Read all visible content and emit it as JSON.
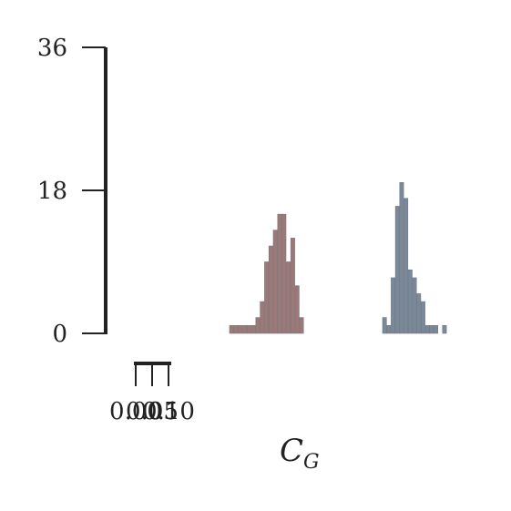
{
  "chart_data": {
    "type": "bar",
    "title": "",
    "xlabel": "C",
    "xlabel_subscript": "G",
    "ylabel": "",
    "y_ticks": [
      "0",
      "18",
      "36"
    ],
    "x_ticks": [
      "0.00",
      "0.05",
      "0.10"
    ],
    "x_tick_values": [
      0.0,
      0.05,
      0.1
    ],
    "ylim": [
      0,
      36
    ],
    "grid": false,
    "colors": {
      "series_a": "#5a1e1e",
      "series_b": "#1e3a5c",
      "axis": "#222222"
    },
    "series": [
      {
        "color_key": "series_a",
        "bins": [
          {
            "bin": 0,
            "count": 1
          },
          {
            "bin": 1,
            "count": 1
          },
          {
            "bin": 2,
            "count": 1
          },
          {
            "bin": 3,
            "count": 1
          },
          {
            "bin": 4,
            "count": 1
          },
          {
            "bin": 5,
            "count": 1
          },
          {
            "bin": 6,
            "count": 2
          },
          {
            "bin": 7,
            "count": 4
          },
          {
            "bin": 8,
            "count": 9
          },
          {
            "bin": 9,
            "count": 11
          },
          {
            "bin": 10,
            "count": 13
          },
          {
            "bin": 11,
            "count": 15
          },
          {
            "bin": 12,
            "count": 15
          },
          {
            "bin": 13,
            "count": 9
          },
          {
            "bin": 14,
            "count": 12
          },
          {
            "bin": 15,
            "count": 6
          },
          {
            "bin": 16,
            "count": 2
          }
        ]
      },
      {
        "color_key": "series_b",
        "bins": [
          {
            "bin": 0,
            "count": 2
          },
          {
            "bin": 1,
            "count": 1
          },
          {
            "bin": 2,
            "count": 7
          },
          {
            "bin": 3,
            "count": 16
          },
          {
            "bin": 4,
            "count": 19
          },
          {
            "bin": 5,
            "count": 17
          },
          {
            "bin": 6,
            "count": 8
          },
          {
            "bin": 7,
            "count": 7
          },
          {
            "bin": 8,
            "count": 5
          },
          {
            "bin": 9,
            "count": 4
          },
          {
            "bin": 10,
            "count": 1
          },
          {
            "bin": 11,
            "count": 1
          },
          {
            "bin": 12,
            "count": 1
          },
          {
            "bin": 13,
            "count": 0
          },
          {
            "bin": 14,
            "count": 1
          }
        ]
      }
    ]
  }
}
